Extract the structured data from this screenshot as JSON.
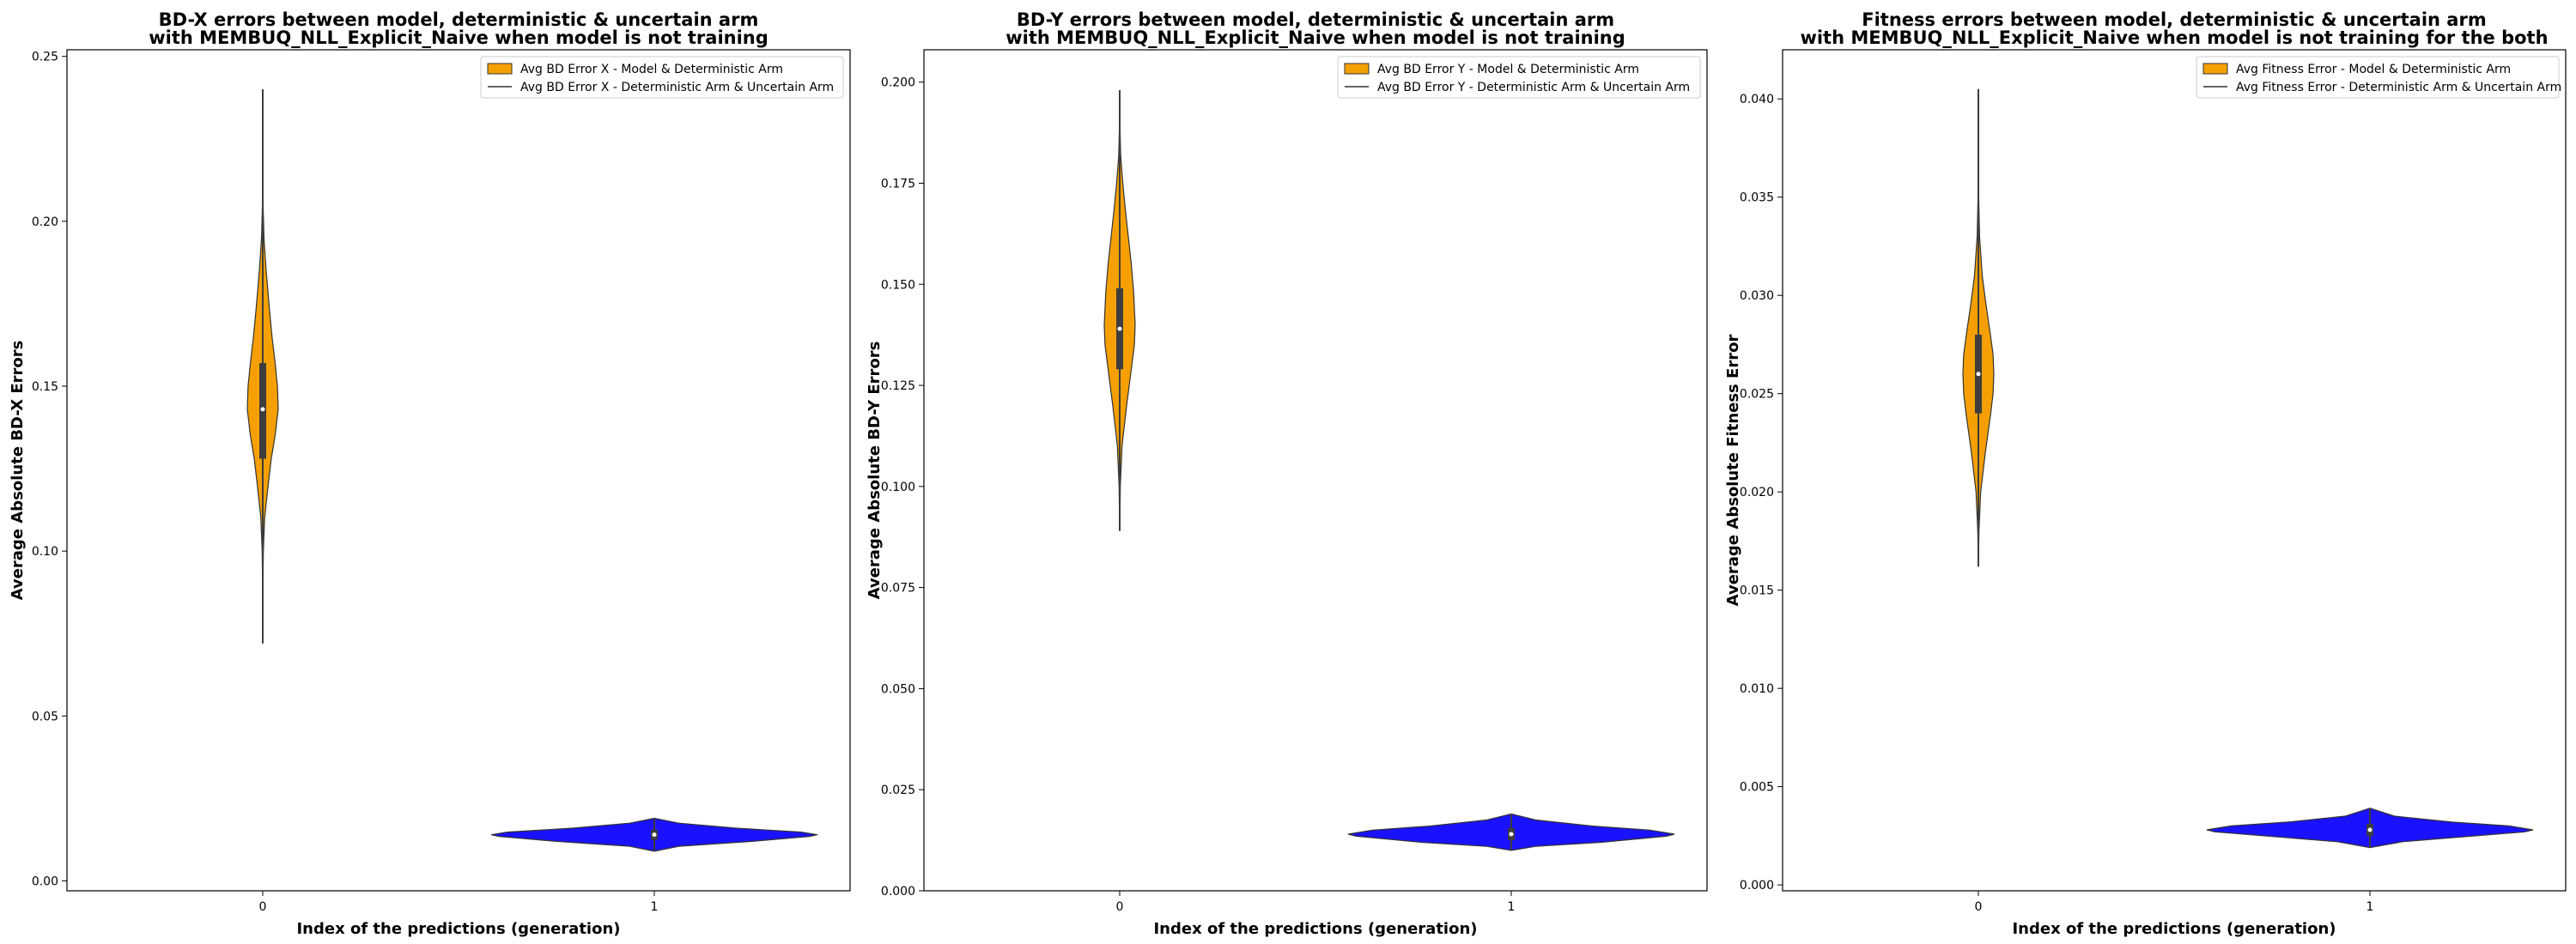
{
  "colors": {
    "orange": "#f5a000",
    "blue": "#1a12ff",
    "box": "#3d3d3d",
    "outline": "#333333",
    "median": "#ffffff"
  },
  "chart_data": [
    {
      "type": "violin",
      "title_line1": "BD-X errors between model, deterministic & uncertain arm",
      "title_line2": "with MEMBUQ_NLL_Explicit_Naive when model is not training",
      "xlabel": "Index of the predictions (generation)",
      "ylabel": "Average Absolute BD-X Errors",
      "categories": [
        "0",
        "1"
      ],
      "ylim": [
        -0.003,
        0.252
      ],
      "yticks": [
        0.0,
        0.05,
        0.1,
        0.15,
        0.2,
        0.25
      ],
      "ytick_labels": [
        "0.00",
        "0.05",
        "0.10",
        "0.15",
        "0.20",
        "0.25"
      ],
      "legend_position": "top-right",
      "series": [
        {
          "name": "Avg BD Error X - Model & Deterministic Arm",
          "color": "orange",
          "min": 0.072,
          "q1": 0.128,
          "median": 0.143,
          "q3": 0.157,
          "max": 0.24,
          "density": [
            [
              0.072,
              0.0
            ],
            [
              0.09,
              0.01
            ],
            [
              0.1,
              0.04
            ],
            [
              0.11,
              0.12
            ],
            [
              0.12,
              0.35
            ],
            [
              0.128,
              0.55
            ],
            [
              0.135,
              0.8
            ],
            [
              0.143,
              1.0
            ],
            [
              0.15,
              0.95
            ],
            [
              0.157,
              0.8
            ],
            [
              0.165,
              0.6
            ],
            [
              0.175,
              0.4
            ],
            [
              0.185,
              0.22
            ],
            [
              0.195,
              0.08
            ],
            [
              0.205,
              0.02
            ],
            [
              0.22,
              0.005
            ],
            [
              0.24,
              0.0
            ]
          ]
        },
        {
          "name": "Avg BD Error X - Deterministic Arm & Uncertain Arm",
          "color": "blue",
          "min": 0.009,
          "q1": 0.0125,
          "median": 0.014,
          "q3": 0.0155,
          "max": 0.019,
          "density": [
            [
              0.009,
              0.0
            ],
            [
              0.0105,
              0.15
            ],
            [
              0.012,
              0.6
            ],
            [
              0.0135,
              0.95
            ],
            [
              0.014,
              1.0
            ],
            [
              0.0148,
              0.9
            ],
            [
              0.016,
              0.5
            ],
            [
              0.0175,
              0.15
            ],
            [
              0.019,
              0.0
            ]
          ]
        }
      ]
    },
    {
      "type": "violin",
      "title_line1": "BD-Y errors between model, deterministic & uncertain arm",
      "title_line2": "with MEMBUQ_NLL_Explicit_Naive when model is not training",
      "xlabel": "Index of the predictions (generation)",
      "ylabel": "Average Absolute BD-Y Errors",
      "categories": [
        "0",
        "1"
      ],
      "ylim": [
        0.0,
        0.208
      ],
      "yticks": [
        0.0,
        0.025,
        0.05,
        0.075,
        0.1,
        0.125,
        0.15,
        0.175,
        0.2
      ],
      "ytick_labels": [
        "0.000",
        "0.025",
        "0.050",
        "0.075",
        "0.100",
        "0.125",
        "0.150",
        "0.175",
        "0.200"
      ],
      "legend_position": "top-right",
      "series": [
        {
          "name": "Avg BD Error Y - Model & Deterministic Arm",
          "color": "orange",
          "min": 0.089,
          "q1": 0.129,
          "median": 0.139,
          "q3": 0.149,
          "max": 0.198,
          "density": [
            [
              0.089,
              0.0
            ],
            [
              0.1,
              0.04
            ],
            [
              0.11,
              0.15
            ],
            [
              0.12,
              0.45
            ],
            [
              0.129,
              0.75
            ],
            [
              0.135,
              0.95
            ],
            [
              0.14,
              1.0
            ],
            [
              0.148,
              0.9
            ],
            [
              0.155,
              0.75
            ],
            [
              0.162,
              0.55
            ],
            [
              0.168,
              0.38
            ],
            [
              0.175,
              0.2
            ],
            [
              0.182,
              0.06
            ],
            [
              0.19,
              0.01
            ],
            [
              0.198,
              0.0
            ]
          ]
        },
        {
          "name": "Avg BD Error Y - Deterministic Arm & Uncertain Arm",
          "color": "blue",
          "min": 0.01,
          "q1": 0.0125,
          "median": 0.014,
          "q3": 0.0155,
          "max": 0.019,
          "density": [
            [
              0.01,
              0.0
            ],
            [
              0.011,
              0.15
            ],
            [
              0.012,
              0.55
            ],
            [
              0.0135,
              0.95
            ],
            [
              0.014,
              1.0
            ],
            [
              0.015,
              0.85
            ],
            [
              0.016,
              0.5
            ],
            [
              0.0175,
              0.15
            ],
            [
              0.019,
              0.0
            ]
          ]
        }
      ]
    },
    {
      "type": "violin",
      "title_line1": "Fitness errors between model, deterministic & uncertain arm",
      "title_line2": "with MEMBUQ_NLL_Explicit_Naive when model is not training for the both",
      "xlabel": "Index of the predictions (generation)",
      "ylabel": "Average Absolute Fitness Error",
      "categories": [
        "0",
        "1"
      ],
      "ylim": [
        -0.0003,
        0.0425
      ],
      "yticks": [
        0.0,
        0.005,
        0.01,
        0.015,
        0.02,
        0.025,
        0.03,
        0.035,
        0.04
      ],
      "ytick_labels": [
        "0.000",
        "0.005",
        "0.010",
        "0.015",
        "0.020",
        "0.025",
        "0.030",
        "0.035",
        "0.040"
      ],
      "legend_position": "top-right",
      "series": [
        {
          "name": "Avg Fitness Error - Model & Deterministic Arm",
          "color": "orange",
          "min": 0.0162,
          "q1": 0.024,
          "median": 0.026,
          "q3": 0.028,
          "max": 0.0405,
          "density": [
            [
              0.0162,
              0.0
            ],
            [
              0.018,
              0.04
            ],
            [
              0.02,
              0.15
            ],
            [
              0.022,
              0.45
            ],
            [
              0.024,
              0.8
            ],
            [
              0.025,
              0.95
            ],
            [
              0.026,
              1.0
            ],
            [
              0.027,
              0.95
            ],
            [
              0.028,
              0.78
            ],
            [
              0.0295,
              0.5
            ],
            [
              0.031,
              0.25
            ],
            [
              0.033,
              0.08
            ],
            [
              0.035,
              0.02
            ],
            [
              0.0405,
              0.0
            ]
          ]
        },
        {
          "name": "Avg Fitness Error - Deterministic Arm & Uncertain Arm",
          "color": "blue",
          "min": 0.0019,
          "q1": 0.0025,
          "median": 0.0028,
          "q3": 0.0031,
          "max": 0.0039,
          "density": [
            [
              0.0019,
              0.0
            ],
            [
              0.0022,
              0.2
            ],
            [
              0.0025,
              0.65
            ],
            [
              0.0027,
              0.95
            ],
            [
              0.0028,
              1.0
            ],
            [
              0.003,
              0.85
            ],
            [
              0.0032,
              0.5
            ],
            [
              0.0035,
              0.15
            ],
            [
              0.0039,
              0.0
            ]
          ]
        }
      ]
    }
  ]
}
